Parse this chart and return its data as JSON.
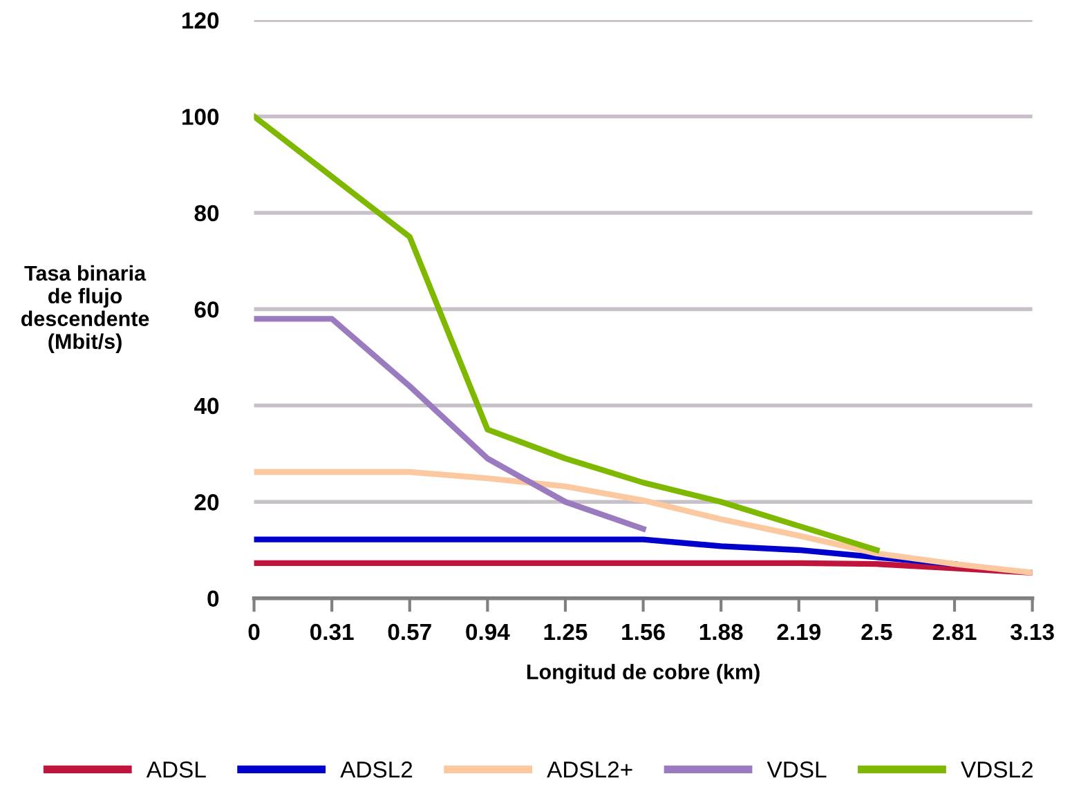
{
  "chart_data": {
    "type": "line",
    "xlabel": "Longitud de cobre (km)",
    "ylabel": "Tasa binaria\nde flujo\ndescendente\n(Mbit/s)",
    "categories": [
      "0",
      "0.31",
      "0.57",
      "0.94",
      "1.25",
      "1.56",
      "1.88",
      "2.19",
      "2.5",
      "2.81",
      "3.13"
    ],
    "ylim": [
      0,
      120
    ],
    "yticks": [
      0,
      20,
      40,
      60,
      80,
      100,
      120
    ],
    "grid": "y",
    "legend": "bottom",
    "marker": "none",
    "line_style": "solid",
    "series": [
      {
        "name": "ADSL",
        "color": "#c0143c",
        "values": [
          7.3,
          7.3,
          7.3,
          7.3,
          7.3,
          7.3,
          7.3,
          7.3,
          7.1,
          6.2,
          5.3
        ]
      },
      {
        "name": "ADSL2",
        "color": "#0000cc",
        "values": [
          12.2,
          12.2,
          12.2,
          12.2,
          12.2,
          12.2,
          10.8,
          10,
          8.5,
          7.1,
          null
        ]
      },
      {
        "name": "ADSL2+",
        "color": "#fcc8a0",
        "values": [
          26.2,
          26.2,
          26.2,
          24.9,
          23.2,
          20.3,
          16.4,
          13,
          9.3,
          7.1,
          5.3
        ]
      },
      {
        "name": "VDSL",
        "color": "#9b7bc0",
        "values": [
          58,
          58,
          44,
          29,
          20,
          14.4,
          null,
          null,
          null,
          null,
          null
        ]
      },
      {
        "name": "VDSL2",
        "color": "#7fb800",
        "values": [
          100,
          87.5,
          75,
          35,
          29,
          24,
          20,
          15,
          10,
          null,
          null
        ]
      }
    ]
  }
}
